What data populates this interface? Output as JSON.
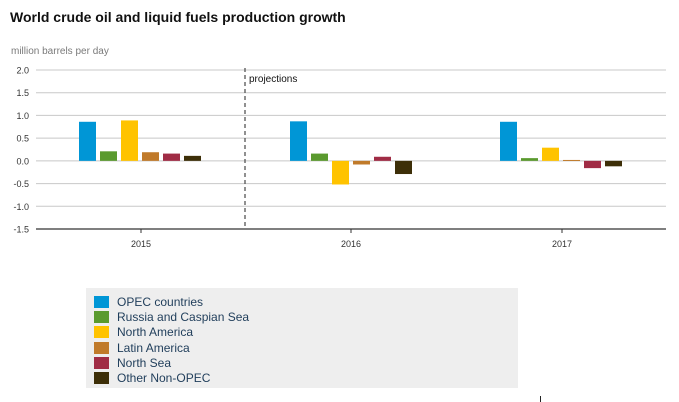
{
  "chart_data": {
    "type": "bar",
    "title": "World crude oil and liquid fuels production growth",
    "ylabel": "million barrels per day",
    "xlabel": "",
    "ylim": [
      -1.5,
      2.0
    ],
    "yticks": [
      "2.0",
      "1.5",
      "1.0",
      "0.5",
      "0.0",
      "-0.5",
      "-1.0",
      "-1.5"
    ],
    "categories": [
      "2015",
      "2016",
      "2017"
    ],
    "annotation": "projections",
    "grid": true,
    "legend_position": "bottom-left",
    "series": [
      {
        "name": "OPEC countries",
        "color": "#0096d6",
        "values": [
          0.86,
          0.87,
          0.86
        ]
      },
      {
        "name": "Russia and Caspian Sea",
        "color": "#5a9a2e",
        "values": [
          0.21,
          0.16,
          0.06
        ]
      },
      {
        "name": "North America",
        "color": "#ffc300",
        "values": [
          0.89,
          -0.52,
          0.29
        ]
      },
      {
        "name": "Latin America",
        "color": "#c07a2a",
        "values": [
          0.19,
          -0.08,
          0.02
        ]
      },
      {
        "name": "North Sea",
        "color": "#a02c45",
        "values": [
          0.16,
          0.09,
          -0.16
        ]
      },
      {
        "name": "Other Non-OPEC",
        "color": "#3d2f08",
        "values": [
          0.11,
          -0.29,
          -0.12
        ]
      }
    ]
  }
}
